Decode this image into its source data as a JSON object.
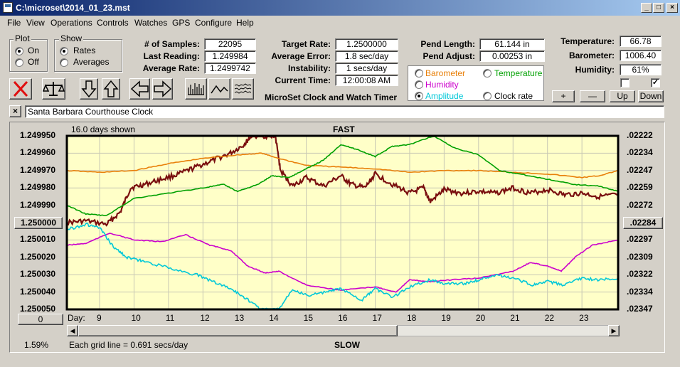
{
  "window": {
    "title": "C:\\microset\\2014_01_23.mst"
  },
  "menu": [
    "File",
    "View",
    "Operations",
    "Controls",
    "Watches",
    "GPS",
    "Configure",
    "Help"
  ],
  "plot_group": {
    "label": "Plot",
    "options": [
      "On",
      "Off"
    ],
    "selected": "On"
  },
  "show_group": {
    "label": "Show",
    "options": [
      "Rates",
      "Averages"
    ],
    "selected": "Rates"
  },
  "stats": {
    "samples_label": "# of Samples:",
    "samples": "22095",
    "last_reading_label": "Last Reading:",
    "last_reading": "1.249984",
    "average_rate_label": "Average Rate:",
    "average_rate": "1.2499742"
  },
  "timing": {
    "target_rate_label": "Target Rate:",
    "target_rate": "1.2500000",
    "average_error_label": "Average Error:",
    "average_error": "1.8 sec/day",
    "instability_label": "Instability:",
    "instability": "1 secs/day",
    "current_time_label": "Current Time:",
    "current_time": "12:00:08 AM",
    "app_caption": "MicroSet Clock and Watch Timer"
  },
  "pendulum": {
    "length_label": "Pend Length:",
    "length": "61.144 in",
    "adjust_label": "Pend Adjust:",
    "adjust": "0.00253 in"
  },
  "series_options": [
    {
      "label": "Barometer",
      "color": "#e8800a",
      "selected": false
    },
    {
      "label": "Temperature",
      "color": "#00a000",
      "selected": false
    },
    {
      "label": "Humidity",
      "color": "#cc00cc",
      "selected": false
    },
    {
      "label": "Amplitude",
      "color": "#00c8d8",
      "selected": true
    },
    {
      "label": "Clock rate",
      "color": "#000000",
      "selected": false
    }
  ],
  "environment": {
    "temperature_label": "Temperature:",
    "temperature": "66.78",
    "barometer_label": "Barometer:",
    "barometer": "1006.40",
    "humidity_label": "Humidity:",
    "humidity": "61%",
    "check1": false,
    "check2": true
  },
  "small_buttons": [
    "+",
    "—",
    "Up",
    "Down"
  ],
  "toolbar_icons": [
    "close-red-icon",
    "balance-scale-icon",
    "arrow-down-icon",
    "arrow-up-icon",
    "arrow-left-icon",
    "arrow-right-icon",
    "bars-icon",
    "wave-icon",
    "noise-icon"
  ],
  "clock_name": "Santa Barbara Courthouse Clock",
  "clock_close": "×",
  "chart": {
    "days_shown": "16.0 days shown",
    "top_label": "FAST",
    "bottom_label": "SLOW",
    "grid_note": "Each grid line = 0.691 secs/day",
    "percent": "1.59%",
    "left_ticks": [
      "1.249950",
      "1.249960",
      "1.249970",
      "1.249980",
      "1.249990",
      "1.250000",
      "1.250010",
      "1.250020",
      "1.250030",
      "1.250040",
      "1.250050"
    ],
    "right_ticks": [
      ".02222",
      ".02234",
      ".02247",
      ".02259",
      ".02272",
      ".02284",
      ".02297",
      ".02309",
      ".02322",
      ".02334",
      ".02347"
    ],
    "left_center_button": "1.250000",
    "right_center_button": ".02284",
    "left_zero_button": "0",
    "x_prefix": "Day:",
    "x_ticks": [
      "9",
      "10",
      "11",
      "12",
      "13",
      "14",
      "15",
      "16",
      "17",
      "18",
      "19",
      "20",
      "21",
      "22",
      "23"
    ],
    "bg_color": "#ffffc8"
  },
  "chart_data": {
    "type": "line",
    "title": "FAST",
    "xlabel": "Day:",
    "x_range": [
      8.05,
      24.05
    ],
    "x_ticks": [
      9,
      10,
      11,
      12,
      13,
      14,
      15,
      16,
      17,
      18,
      19,
      20,
      21,
      22,
      23
    ],
    "ylabel": "",
    "ylim": [
      1.25005,
      1.24995
    ],
    "y2lim": [
      0.02347,
      0.02222
    ],
    "series": [
      {
        "name": "Clock rate",
        "color": "#7a0f0f",
        "axis": "left",
        "x": [
          8.05,
          8.6,
          9.2,
          9.6,
          9.9,
          10.3,
          10.8,
          11.3,
          11.8,
          12.3,
          12.8,
          13.2,
          13.4,
          13.8,
          14.1,
          14.25,
          14.6,
          15.0,
          15.5,
          16.0,
          16.3,
          16.7,
          17.0,
          17.5,
          18.0,
          18.4,
          18.6,
          19.0,
          19.5,
          20.0,
          20.5,
          21.0,
          21.5,
          22.0,
          22.5,
          23.0,
          23.5,
          24.05
        ],
        "y": [
          1.25,
          1.249999,
          1.250001,
          1.249994,
          1.24998,
          1.249978,
          1.249975,
          1.249972,
          1.249968,
          1.249964,
          1.24996,
          1.249955,
          1.24995,
          1.24995,
          1.24995,
          1.24997,
          1.249979,
          1.249974,
          1.249979,
          1.249973,
          1.249978,
          1.24998,
          1.249972,
          1.249978,
          1.249983,
          1.24998,
          1.249988,
          1.249981,
          1.249983,
          1.249982,
          1.249983,
          1.24998,
          1.249983,
          1.249981,
          1.249984,
          1.249983,
          1.249985,
          1.249984
        ]
      },
      {
        "name": "Barometer",
        "color": "#e8800a",
        "axis": "left",
        "x": [
          8.05,
          9.0,
          10.0,
          11.0,
          12.0,
          13.0,
          13.7,
          14.2,
          15.0,
          16.0,
          17.0,
          18.0,
          19.0,
          20.0,
          21.0,
          22.0,
          23.0,
          23.5,
          24.05
        ],
        "y": [
          1.24997,
          1.249971,
          1.24997,
          1.249966,
          1.249963,
          1.249961,
          1.24996,
          1.249963,
          1.249967,
          1.249968,
          1.249969,
          1.249971,
          1.24997,
          1.24997,
          1.249971,
          1.249972,
          1.249974,
          1.249973,
          1.24997
        ]
      },
      {
        "name": "Temperature",
        "color": "#00a000",
        "axis": "left",
        "x": [
          8.05,
          8.6,
          9.2,
          10.0,
          11.0,
          12.0,
          12.6,
          13.0,
          13.6,
          14.0,
          14.5,
          15.0,
          15.5,
          16.0,
          16.5,
          17.0,
          17.5,
          18.0,
          18.7,
          19.3,
          20.0,
          20.6,
          21.2,
          22.0,
          22.8,
          23.5,
          24.05
        ],
        "y": [
          1.24999,
          1.249995,
          1.249996,
          1.249986,
          1.249983,
          1.24998,
          1.249978,
          1.249982,
          1.249978,
          1.249973,
          1.249974,
          1.249969,
          1.249964,
          1.249955,
          1.249958,
          1.249962,
          1.249956,
          1.249955,
          1.24995,
          1.249957,
          1.249961,
          1.24997,
          1.249972,
          1.249975,
          1.249978,
          1.249979,
          1.249982
        ]
      },
      {
        "name": "Humidity",
        "color": "#cc00cc",
        "axis": "left",
        "x": [
          8.05,
          8.6,
          9.3,
          10.0,
          10.8,
          11.5,
          12.2,
          12.8,
          13.3,
          13.8,
          14.2,
          15.0,
          16.0,
          17.0,
          17.6,
          18.0,
          18.6,
          19.2,
          20.0,
          21.0,
          21.5,
          22.0,
          22.4,
          22.8,
          23.3,
          24.05
        ],
        "y": [
          1.250013,
          1.250012,
          1.250006,
          1.25001,
          1.250011,
          1.250007,
          1.250013,
          1.250016,
          1.250025,
          1.250029,
          1.250028,
          1.250036,
          1.250039,
          1.250037,
          1.25004,
          1.250033,
          1.250034,
          1.250033,
          1.250032,
          1.250028,
          1.250023,
          1.250025,
          1.250028,
          1.25002,
          1.250013,
          1.25001
        ]
      },
      {
        "name": "Amplitude",
        "color": "#00c8d8",
        "axis": "left",
        "x": [
          8.05,
          8.6,
          9.0,
          9.4,
          9.8,
          10.2,
          11.0,
          11.8,
          12.3,
          12.8,
          13.2,
          13.7,
          14.2,
          14.6,
          15.0,
          15.6,
          16.0,
          16.6,
          17.0,
          17.5,
          18.0,
          18.6,
          19.0,
          19.6,
          20.0,
          20.5,
          21.0,
          21.6,
          22.0,
          22.5,
          23.0,
          23.5,
          24.05
        ],
        "y": [
          1.250004,
          1.250001,
          1.250003,
          1.250014,
          1.25002,
          1.250022,
          1.250026,
          1.25003,
          1.250034,
          1.250038,
          1.250043,
          1.25005,
          1.25005,
          1.250038,
          1.250042,
          1.25004,
          1.250038,
          1.250045,
          1.250038,
          1.250043,
          1.250037,
          1.250033,
          1.250035,
          1.250035,
          1.250033,
          1.25003,
          1.250032,
          1.250036,
          1.250034,
          1.250036,
          1.250032,
          1.250033,
          1.250032
        ]
      }
    ]
  }
}
